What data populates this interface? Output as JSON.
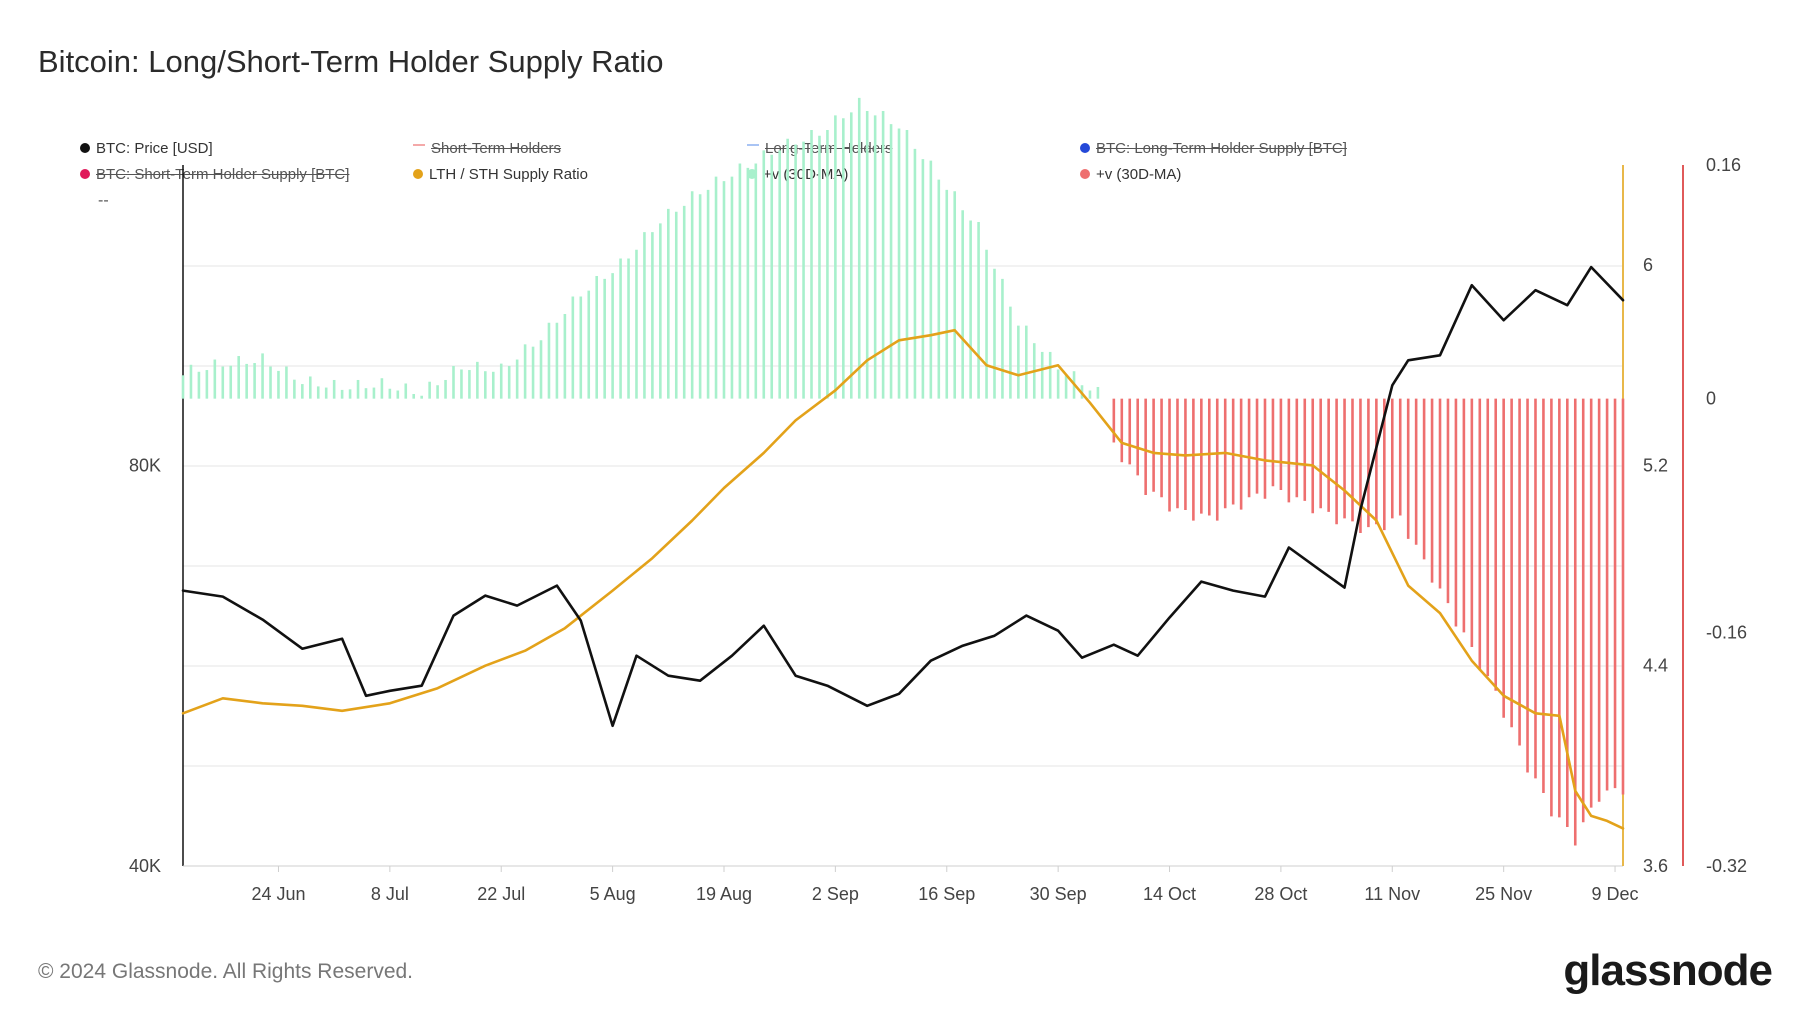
{
  "header": {
    "title": "Bitcoin: Long/Short-Term Holder Supply Ratio",
    "legend_dash": "--"
  },
  "legend": [
    {
      "label": "BTC: Price [USD]",
      "color": "#111111",
      "active": true
    },
    {
      "label": "Short-Term Holders",
      "color": "#f4a9a9",
      "active": false
    },
    {
      "label": "Long-Term Holders",
      "color": "#a9c4f4",
      "active": false
    },
    {
      "label": "BTC: Long-Term Holder Supply [BTC]",
      "color": "#2448d8",
      "active": false
    },
    {
      "label": "BTC: Short-Term Holder Supply [BTC]",
      "color": "#e0195a",
      "active": false
    },
    {
      "label": "LTH / STH Supply Ratio",
      "color": "#e3a21a",
      "active": true
    },
    {
      "label": "+v (30D-MA)",
      "color": "#a8f0cc",
      "active": true
    },
    {
      "label": "+v (30D-MA)",
      "color": "#ee6f6f",
      "active": true
    }
  ],
  "footer": {
    "copyright": "© 2024 Glassnode. All Rights Reserved.",
    "brand": "glassnode"
  },
  "chart_data": {
    "type": "line",
    "x_ticks": [
      "24 Jun",
      "8 Jul",
      "22 Jul",
      "5 Aug",
      "19 Aug",
      "2 Sep",
      "16 Sep",
      "30 Sep",
      "14 Oct",
      "28 Oct",
      "11 Nov",
      "25 Nov",
      "9 Dec"
    ],
    "x_range": [
      "2024-06-12",
      "2024-12-10"
    ],
    "y_left": {
      "ticks": [
        "40K",
        "80K"
      ],
      "range": [
        40000,
        110000
      ],
      "scale": "linear"
    },
    "y_right1": {
      "ticks": [
        "6",
        "5.2",
        "4.4",
        "3.6"
      ],
      "range": [
        3.6,
        6.4
      ]
    },
    "y_right2": {
      "ticks": [
        "0.16",
        "0",
        "-0.16",
        "-0.32"
      ],
      "range": [
        -0.32,
        0.16
      ]
    },
    "grid": true,
    "legend_position": "top",
    "colors": {
      "price": "#111111",
      "ratio": "#e3a21a",
      "positive_bars": "#a8f0cc",
      "negative_bars": "#ee6f6f",
      "ratio_axis": "#e8b84a",
      "bars_axis": "#e05a5a"
    },
    "series": [
      {
        "name": "BTC: Price [USD]",
        "axis": "left",
        "x": [
          "2024-06-12",
          "2024-06-17",
          "2024-06-22",
          "2024-06-27",
          "2024-07-02",
          "2024-07-05",
          "2024-07-08",
          "2024-07-12",
          "2024-07-16",
          "2024-07-20",
          "2024-07-24",
          "2024-07-29",
          "2024-08-01",
          "2024-08-05",
          "2024-08-08",
          "2024-08-12",
          "2024-08-16",
          "2024-08-20",
          "2024-08-24",
          "2024-08-28",
          "2024-09-01",
          "2024-09-06",
          "2024-09-10",
          "2024-09-14",
          "2024-09-18",
          "2024-09-22",
          "2024-09-26",
          "2024-09-30",
          "2024-10-03",
          "2024-10-07",
          "2024-10-10",
          "2024-10-14",
          "2024-10-18",
          "2024-10-22",
          "2024-10-26",
          "2024-10-29",
          "2024-11-02",
          "2024-11-05",
          "2024-11-07",
          "2024-11-11",
          "2024-11-13",
          "2024-11-17",
          "2024-11-21",
          "2024-11-25",
          "2024-11-29",
          "2024-12-03",
          "2024-12-06",
          "2024-12-10"
        ],
        "values": [
          67500,
          66900,
          64600,
          61700,
          62700,
          57000,
          57500,
          58000,
          65000,
          67000,
          66000,
          68000,
          64500,
          54000,
          61000,
          59000,
          58500,
          61000,
          64000,
          59000,
          58000,
          56000,
          57200,
          60500,
          62000,
          63000,
          65000,
          63500,
          60800,
          62100,
          61000,
          64800,
          68400,
          67500,
          66900,
          71800,
          69500,
          67800,
          75600,
          88000,
          90500,
          91000,
          98000,
          94500,
          97500,
          96000,
          99800,
          96500
        ]
      },
      {
        "name": "LTH / STH Supply Ratio",
        "axis": "right1",
        "x": [
          "2024-06-12",
          "2024-06-17",
          "2024-06-22",
          "2024-06-27",
          "2024-07-02",
          "2024-07-08",
          "2024-07-14",
          "2024-07-20",
          "2024-07-25",
          "2024-07-30",
          "2024-08-05",
          "2024-08-10",
          "2024-08-15",
          "2024-08-19",
          "2024-08-24",
          "2024-08-28",
          "2024-09-02",
          "2024-09-06",
          "2024-09-10",
          "2024-09-14",
          "2024-09-17",
          "2024-09-21",
          "2024-09-25",
          "2024-09-30",
          "2024-10-04",
          "2024-10-08",
          "2024-10-12",
          "2024-10-16",
          "2024-10-21",
          "2024-10-26",
          "2024-11-01",
          "2024-11-05",
          "2024-11-09",
          "2024-11-13",
          "2024-11-17",
          "2024-11-21",
          "2024-11-25",
          "2024-11-29",
          "2024-12-02",
          "2024-12-04",
          "2024-12-06",
          "2024-12-08",
          "2024-12-10"
        ],
        "values": [
          4.21,
          4.27,
          4.25,
          4.24,
          4.22,
          4.25,
          4.31,
          4.4,
          4.46,
          4.55,
          4.7,
          4.83,
          4.98,
          5.11,
          5.25,
          5.38,
          5.5,
          5.62,
          5.7,
          5.72,
          5.74,
          5.6,
          5.56,
          5.6,
          5.45,
          5.29,
          5.25,
          5.24,
          5.25,
          5.22,
          5.2,
          5.1,
          4.98,
          4.72,
          4.61,
          4.42,
          4.28,
          4.21,
          4.2,
          3.9,
          3.8,
          3.78,
          3.75
        ]
      },
      {
        "name": "+v (30D-MA)",
        "axis": "right2",
        "type": "bar",
        "x": [
          "2024-06-12",
          "2024-06-17",
          "2024-06-22",
          "2024-06-27",
          "2024-07-02",
          "2024-07-07",
          "2024-07-12",
          "2024-07-17",
          "2024-07-22",
          "2024-07-27",
          "2024-08-01",
          "2024-08-06",
          "2024-08-11",
          "2024-08-16",
          "2024-08-21",
          "2024-08-26",
          "2024-08-31",
          "2024-09-05",
          "2024-09-10",
          "2024-09-15",
          "2024-09-20",
          "2024-09-25",
          "2024-09-30",
          "2024-10-05"
        ],
        "values": [
          0.016,
          0.022,
          0.025,
          0.01,
          0.006,
          0.008,
          0.002,
          0.02,
          0.018,
          0.04,
          0.07,
          0.09,
          0.12,
          0.14,
          0.155,
          0.17,
          0.18,
          0.2,
          0.185,
          0.15,
          0.115,
          0.05,
          0.02,
          0.002
        ]
      },
      {
        "name": "+v (30D-MA)",
        "axis": "right2",
        "type": "bar",
        "x": [
          "2024-10-07",
          "2024-10-11",
          "2024-10-15",
          "2024-10-19",
          "2024-10-23",
          "2024-10-27",
          "2024-10-31",
          "2024-11-04",
          "2024-11-08",
          "2024-11-12",
          "2024-11-16",
          "2024-11-20",
          "2024-11-24",
          "2024-11-28",
          "2024-12-01",
          "2024-12-04",
          "2024-12-07",
          "2024-12-10"
        ],
        "values": [
          -0.03,
          -0.06,
          -0.075,
          -0.08,
          -0.07,
          -0.06,
          -0.07,
          -0.08,
          -0.088,
          -0.08,
          -0.12,
          -0.16,
          -0.2,
          -0.25,
          -0.28,
          -0.3,
          -0.27,
          -0.265
        ]
      }
    ]
  }
}
